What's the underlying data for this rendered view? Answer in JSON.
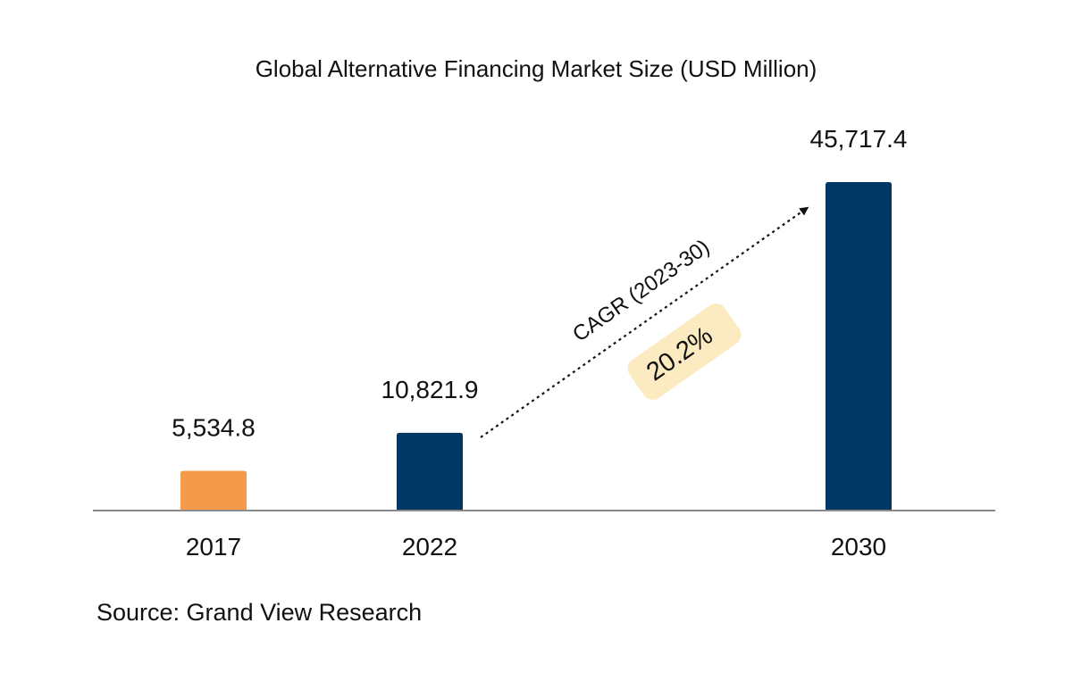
{
  "chart_data": {
    "type": "bar",
    "title": "Global Alternative Financing Market Size (USD Million)",
    "categories": [
      "2017",
      "2022",
      "2030"
    ],
    "values": [
      5534.8,
      10821.9,
      45717.4
    ],
    "value_labels": [
      "5,534.8",
      "10,821.9",
      "45,717.4"
    ],
    "bar_colors": [
      "#F59A4B",
      "#003764",
      "#003764"
    ],
    "xlabel": "",
    "ylabel": "",
    "ylim": [
      0,
      45717.4
    ],
    "grid": false,
    "annotation": {
      "label": "CAGR (2023-30)",
      "value": "20.2%",
      "badge_color": "#FCEBC0"
    },
    "source": "Source: Grand View Research"
  }
}
